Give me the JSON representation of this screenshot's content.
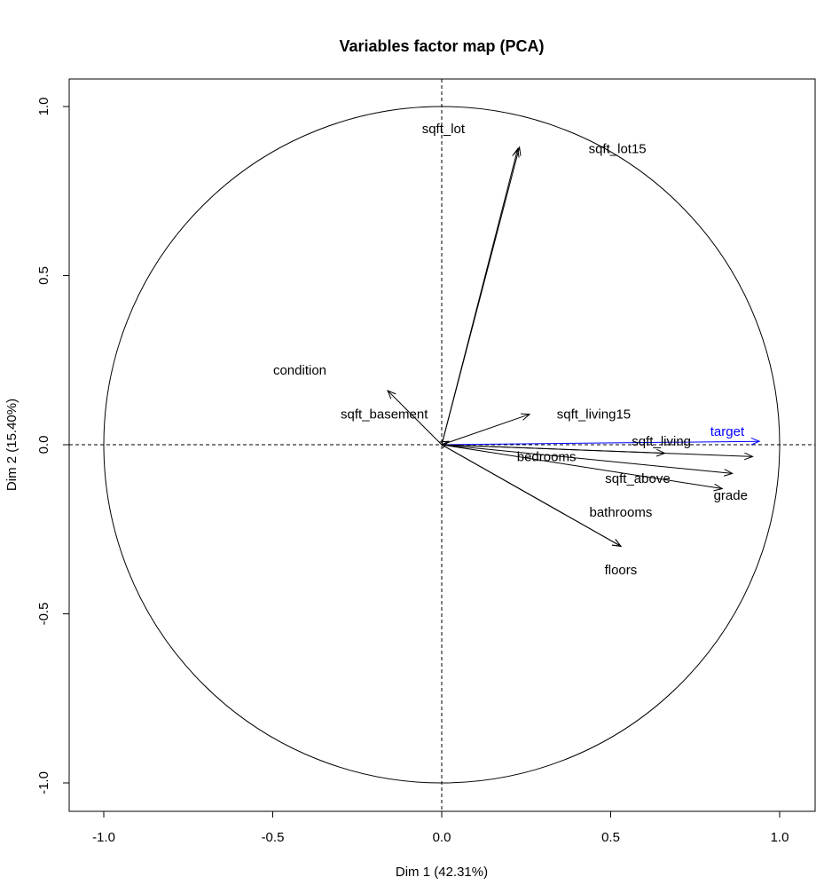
{
  "chart_data": {
    "type": "scatter",
    "subtype": "pca-variables-factor-map",
    "title": "Variables factor map (PCA)",
    "xlabel": "Dim 1 (42.31%)",
    "ylabel": "Dim 2 (15.40%)",
    "xlim": [
      -1.1,
      1.1
    ],
    "ylim": [
      -1.08,
      1.08
    ],
    "x_ticks": [
      -1.0,
      -0.5,
      0.0,
      0.5,
      1.0
    ],
    "x_tick_labels": [
      "-1.0",
      "-0.5",
      "0.0",
      "0.5",
      "1.0"
    ],
    "y_ticks": [
      -1.0,
      -0.5,
      0.0,
      0.5,
      1.0
    ],
    "y_tick_labels": [
      "-1.0",
      "-0.5",
      "0.0",
      "0.5",
      "1.0"
    ],
    "correlation_circle": true,
    "reference_lines": {
      "x": 0,
      "y": 0,
      "style": "dashed"
    },
    "grid": false,
    "legend": "none",
    "variables": [
      {
        "name": "sqft_lot",
        "x": 0.23,
        "y": 0.88,
        "label_x": 0.005,
        "label_y": 0.935,
        "color": "#000000"
      },
      {
        "name": "sqft_lot15",
        "x": 0.225,
        "y": 0.875,
        "label_x": 0.52,
        "label_y": 0.875,
        "color": "#000000"
      },
      {
        "name": "condition",
        "x": -0.16,
        "y": 0.16,
        "label_x": -0.42,
        "label_y": 0.22,
        "color": "#000000"
      },
      {
        "name": "sqft_basement",
        "x": 0.02,
        "y": 0.01,
        "label_x": -0.17,
        "label_y": 0.09,
        "color": "#000000"
      },
      {
        "name": "sqft_living15",
        "x": 0.26,
        "y": 0.09,
        "label_x": 0.45,
        "label_y": 0.09,
        "color": "#000000"
      },
      {
        "name": "target",
        "x": 0.94,
        "y": 0.01,
        "label_x": 0.845,
        "label_y": 0.04,
        "color": "#0000ff"
      },
      {
        "name": "sqft_living",
        "x": 0.92,
        "y": -0.035,
        "label_x": 0.65,
        "label_y": 0.01,
        "color": "#000000"
      },
      {
        "name": "bedrooms",
        "x": 0.66,
        "y": -0.025,
        "label_x": 0.31,
        "label_y": -0.035,
        "color": "#000000"
      },
      {
        "name": "sqft_above",
        "x": 0.86,
        "y": -0.085,
        "label_x": 0.58,
        "label_y": -0.1,
        "color": "#000000"
      },
      {
        "name": "grade",
        "x": 0.83,
        "y": -0.13,
        "label_x": 0.855,
        "label_y": -0.15,
        "color": "#000000"
      },
      {
        "name": "bathrooms",
        "x": 0.53,
        "y": -0.3,
        "label_x": 0.53,
        "label_y": -0.2,
        "color": "#000000"
      },
      {
        "name": "floors",
        "x": 0.53,
        "y": -0.3,
        "label_x": 0.53,
        "label_y": -0.37,
        "color": "#000000"
      }
    ]
  }
}
